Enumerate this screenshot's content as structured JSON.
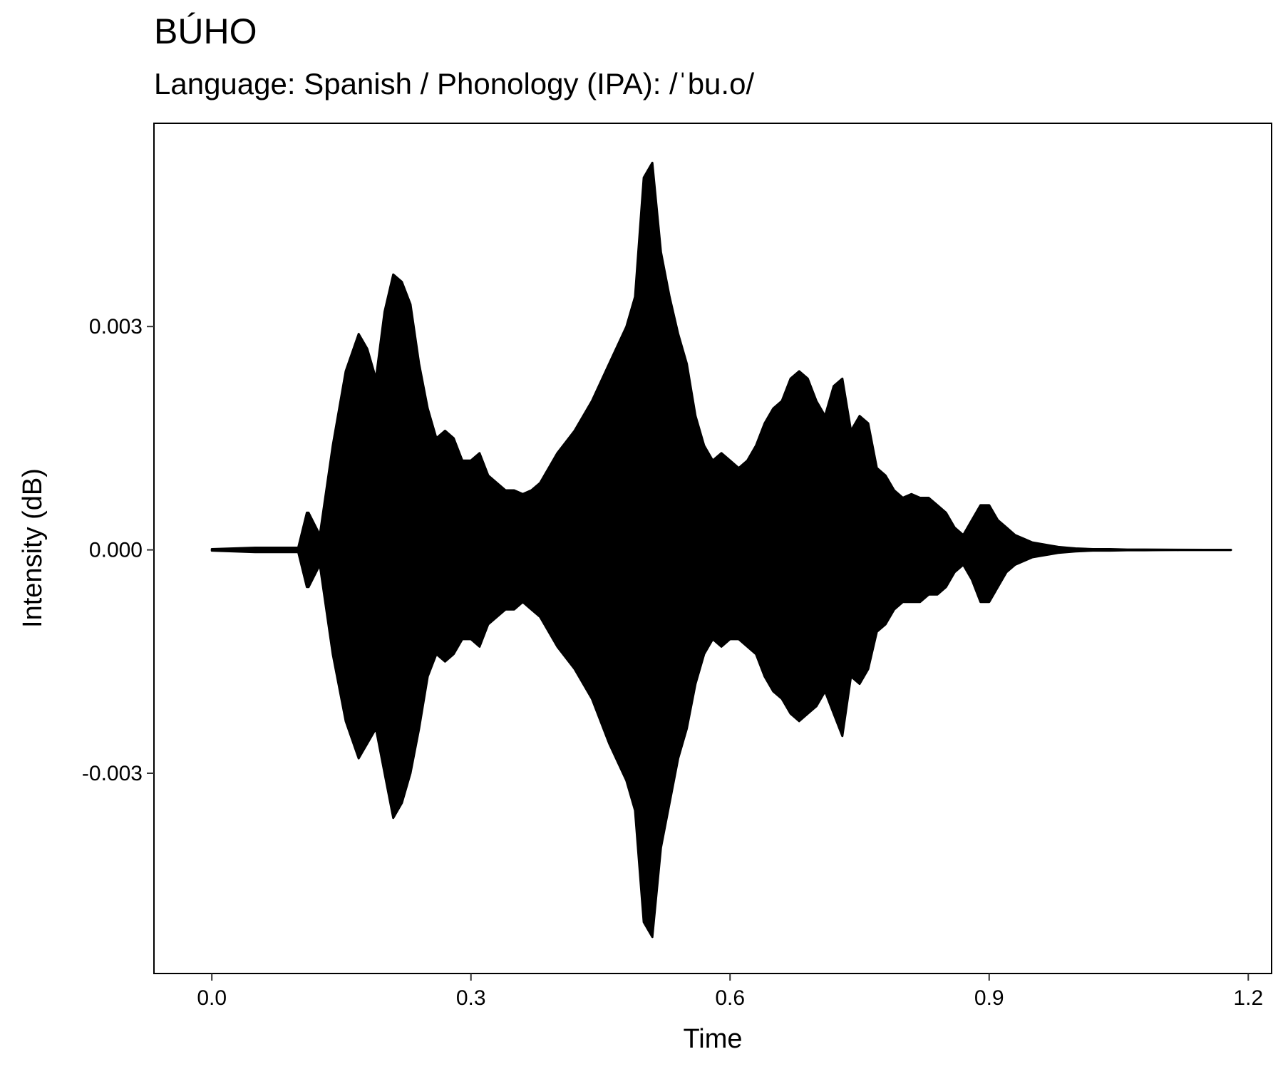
{
  "chart_data": {
    "type": "area",
    "title": "BÚHO",
    "subtitle": "Language: Spanish / Phonology (IPA): /ˈbu.o/",
    "xlabel": "Time",
    "ylabel": "Intensity (dB)",
    "xlim": [
      -0.067,
      1.227
    ],
    "ylim": [
      -0.00569,
      0.00573
    ],
    "x_ticks": [
      0.0,
      0.3,
      0.6,
      0.9,
      1.2
    ],
    "x_tick_labels": [
      "0.0",
      "0.3",
      "0.6",
      "0.9",
      "1.2"
    ],
    "y_ticks": [
      0.003,
      0.0,
      -0.003
    ],
    "y_tick_labels": [
      "0.003",
      "0.000",
      "-0.003"
    ],
    "grid": false,
    "legend": "none",
    "line_color": "#000000",
    "series": [
      {
        "time": [
          0.0,
          0.05,
          0.1,
          0.11,
          0.112,
          0.125,
          0.14,
          0.155,
          0.17,
          0.18,
          0.19,
          0.2,
          0.21,
          0.22,
          0.23,
          0.24,
          0.25,
          0.26,
          0.27,
          0.28,
          0.29,
          0.3,
          0.31,
          0.32,
          0.33,
          0.34,
          0.35,
          0.36,
          0.37,
          0.38,
          0.39,
          0.4,
          0.42,
          0.44,
          0.46,
          0.48,
          0.49,
          0.5,
          0.51,
          0.52,
          0.53,
          0.54,
          0.55,
          0.56,
          0.57,
          0.58,
          0.59,
          0.6,
          0.61,
          0.62,
          0.63,
          0.64,
          0.65,
          0.66,
          0.67,
          0.68,
          0.69,
          0.7,
          0.71,
          0.72,
          0.73,
          0.74,
          0.75,
          0.76,
          0.77,
          0.78,
          0.79,
          0.8,
          0.81,
          0.82,
          0.83,
          0.84,
          0.85,
          0.86,
          0.87,
          0.88,
          0.89,
          0.9,
          0.91,
          0.92,
          0.93,
          0.94,
          0.95,
          0.96,
          0.97,
          0.98,
          0.99,
          1.0,
          1.02,
          1.04,
          1.06,
          1.08,
          1.1,
          1.12,
          1.15,
          1.18
        ],
        "upper": [
          1e-05,
          3e-05,
          3e-05,
          0.0005,
          0.0005,
          0.0002,
          0.0014,
          0.0024,
          0.0029,
          0.0027,
          0.0023,
          0.0032,
          0.0037,
          0.0036,
          0.0033,
          0.0025,
          0.0019,
          0.0015,
          0.0016,
          0.0015,
          0.0012,
          0.0012,
          0.0013,
          0.001,
          0.0009,
          0.0008,
          0.0008,
          0.00075,
          0.0008,
          0.0009,
          0.0011,
          0.0013,
          0.0016,
          0.002,
          0.0025,
          0.003,
          0.0034,
          0.005,
          0.0052,
          0.004,
          0.0034,
          0.0029,
          0.0025,
          0.0018,
          0.0014,
          0.0012,
          0.0013,
          0.0012,
          0.0011,
          0.0012,
          0.0014,
          0.0017,
          0.0019,
          0.002,
          0.0023,
          0.0024,
          0.0023,
          0.002,
          0.0018,
          0.0022,
          0.0023,
          0.0016,
          0.0018,
          0.0017,
          0.0011,
          0.001,
          0.0008,
          0.0007,
          0.00075,
          0.0007,
          0.0007,
          0.0006,
          0.0005,
          0.0003,
          0.0002,
          0.0004,
          0.0006,
          0.0006,
          0.0004,
          0.0003,
          0.0002,
          0.00015,
          0.0001,
          8e-05,
          6e-05,
          4e-05,
          3e-05,
          2e-05,
          1e-05,
          1e-05,
          5e-06,
          5e-06,
          3e-06,
          2e-06,
          1e-06,
          1e-06
        ],
        "lower": [
          -1e-05,
          -3e-05,
          -3e-05,
          -0.0005,
          -0.0005,
          -0.0002,
          -0.0014,
          -0.0023,
          -0.0028,
          -0.0026,
          -0.0024,
          -0.003,
          -0.0036,
          -0.0034,
          -0.003,
          -0.0024,
          -0.0017,
          -0.0014,
          -0.0015,
          -0.0014,
          -0.0012,
          -0.0012,
          -0.0013,
          -0.001,
          -0.0009,
          -0.0008,
          -0.0008,
          -0.0007,
          -0.0008,
          -0.0009,
          -0.0011,
          -0.0013,
          -0.0016,
          -0.002,
          -0.0026,
          -0.0031,
          -0.0035,
          -0.005,
          -0.0052,
          -0.004,
          -0.0034,
          -0.0028,
          -0.0024,
          -0.0018,
          -0.0014,
          -0.0012,
          -0.0013,
          -0.0012,
          -0.0012,
          -0.0013,
          -0.0014,
          -0.0017,
          -0.0019,
          -0.002,
          -0.0022,
          -0.0023,
          -0.0022,
          -0.0021,
          -0.0019,
          -0.0022,
          -0.0025,
          -0.0017,
          -0.0018,
          -0.0016,
          -0.0011,
          -0.001,
          -0.0008,
          -0.0007,
          -0.0007,
          -0.0007,
          -0.0006,
          -0.0006,
          -0.0005,
          -0.0003,
          -0.0002,
          -0.0004,
          -0.0007,
          -0.0007,
          -0.0005,
          -0.0003,
          -0.0002,
          -0.00015,
          -0.0001,
          -8e-05,
          -6e-05,
          -4e-05,
          -3e-05,
          -2e-05,
          -1e-05,
          -1e-05,
          -5e-06,
          -5e-06,
          -3e-06,
          -2e-06,
          -1e-06,
          -1e-06
        ]
      }
    ]
  }
}
